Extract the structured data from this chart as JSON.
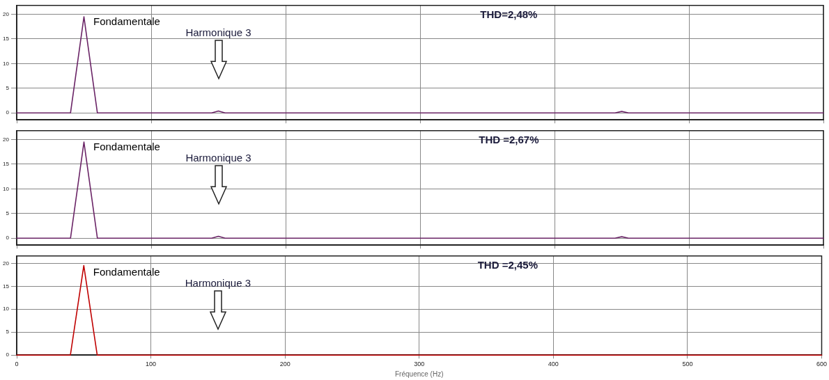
{
  "chart_data": [
    {
      "type": "line",
      "x": [
        0,
        40,
        50,
        60,
        145,
        150,
        155,
        445,
        450,
        455,
        600
      ],
      "series": [
        {
          "color": "#6a2466",
          "values": [
            0,
            0,
            19.5,
            0,
            0,
            0.4,
            0,
            0,
            0.3,
            0,
            0
          ]
        }
      ],
      "xlim": [
        0,
        600
      ],
      "xticks": [
        0,
        100,
        200,
        300,
        400,
        500,
        600
      ],
      "ylim": [
        -1.4,
        21.8
      ],
      "yticks": [
        0,
        5,
        10,
        15,
        20
      ],
      "tick_labels": "y",
      "grid": true,
      "legend": false,
      "marker": "none",
      "line_style": "solid",
      "annotations": [
        "Fondamentale",
        "Harmonique 3",
        "THD=2,48%"
      ]
    },
    {
      "type": "line",
      "x": [
        0,
        40,
        50,
        60,
        145,
        150,
        155,
        445,
        450,
        455,
        600
      ],
      "series": [
        {
          "color": "#6a2466",
          "values": [
            0,
            0,
            19.5,
            0,
            0,
            0.4,
            0,
            0,
            0.3,
            0,
            0
          ]
        }
      ],
      "xlim": [
        0,
        600
      ],
      "xticks": [
        0,
        100,
        200,
        300,
        400,
        500,
        600
      ],
      "ylim": [
        -1.4,
        21.8
      ],
      "yticks": [
        0,
        5,
        10,
        15,
        20
      ],
      "tick_labels": "y",
      "grid": true,
      "legend": false,
      "marker": "none",
      "line_style": "solid",
      "annotations": [
        "Fondamentale",
        "Harmonique 3",
        "THD =2,67%"
      ]
    },
    {
      "type": "line",
      "x": [
        0,
        40,
        50,
        60,
        600
      ],
      "series": [
        {
          "color": "#c00000",
          "values": [
            0,
            0,
            19.5,
            0,
            0
          ]
        }
      ],
      "xlim": [
        0,
        600
      ],
      "xticks": [
        0,
        100,
        200,
        300,
        400,
        500,
        600
      ],
      "ylim": [
        0,
        21.6
      ],
      "yticks": [
        0,
        5,
        10,
        15,
        20
      ],
      "grid": true,
      "legend": false,
      "marker": "none",
      "line_style": "solid",
      "xlabel": "Fréquence (Hz)",
      "annotations": [
        "Fondamentale",
        "Harmonique 3",
        "THD =2,45%"
      ]
    }
  ]
}
